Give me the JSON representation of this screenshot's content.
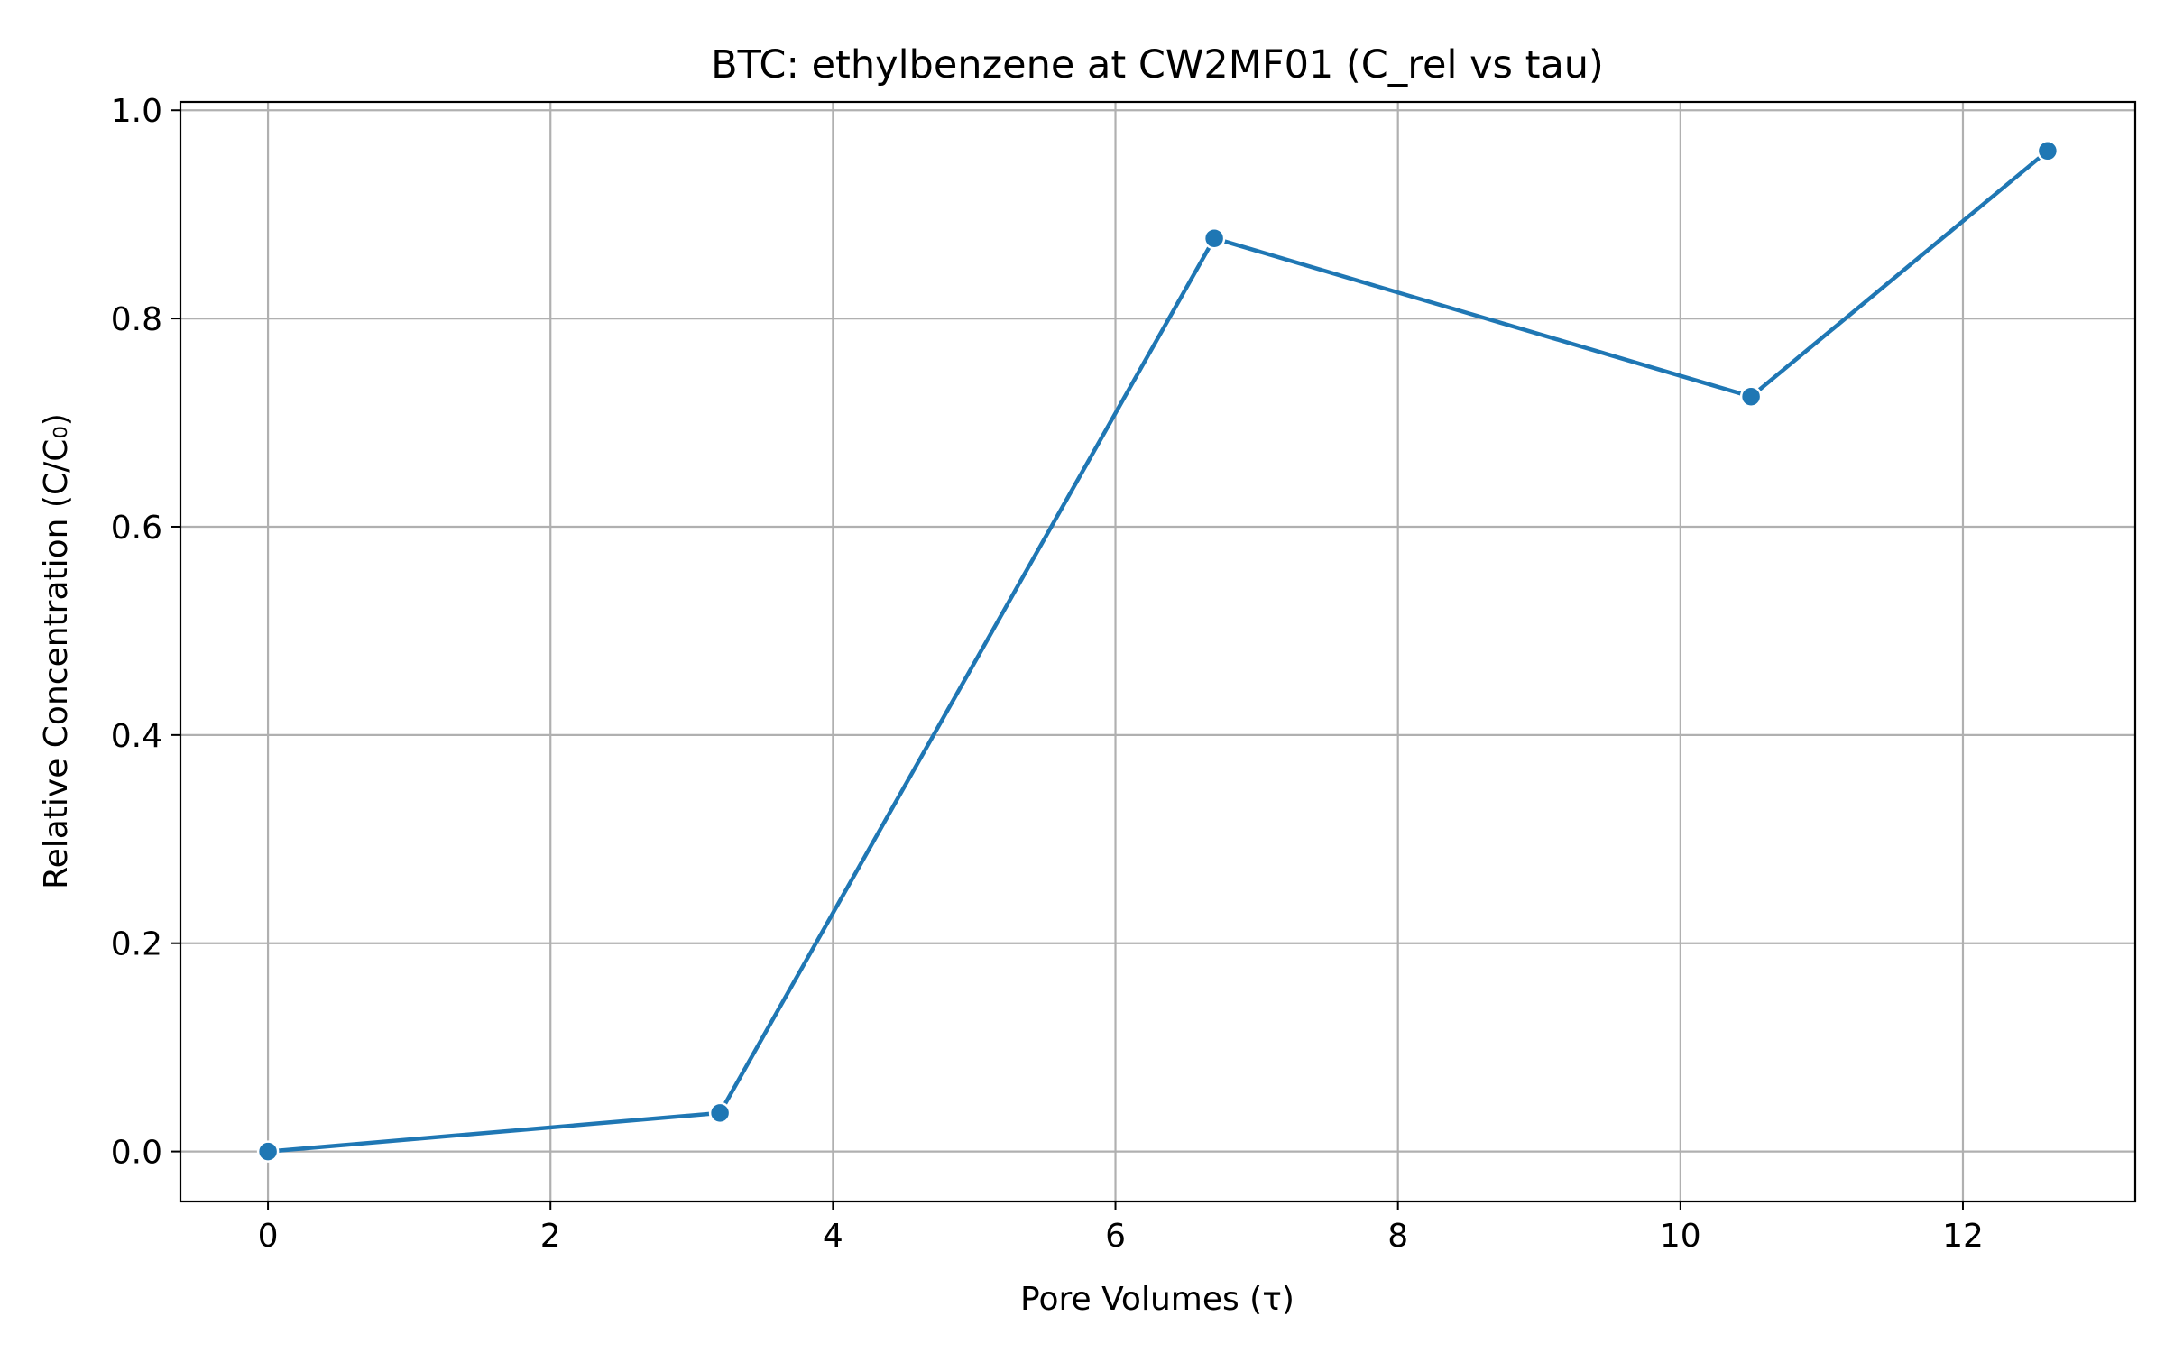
{
  "chart_data": {
    "type": "line",
    "title": "BTC: ethylbenzene at CW2MF01 (C_rel vs tau)",
    "xlabel": "Pore Volumes (τ)",
    "ylabel": "Relative Concentration (C/C₀)",
    "xlim": [
      -0.62,
      13.22
    ],
    "ylim": [
      -0.048,
      1.008
    ],
    "x_ticks": [
      0,
      2,
      4,
      6,
      8,
      10,
      12
    ],
    "x_tick_labels": [
      "0",
      "2",
      "4",
      "6",
      "8",
      "10",
      "12"
    ],
    "y_ticks": [
      0.0,
      0.2,
      0.4,
      0.6,
      0.8,
      1.0
    ],
    "y_tick_labels": [
      "0.0",
      "0.2",
      "0.4",
      "0.6",
      "0.8",
      "1.0"
    ],
    "grid": true,
    "series": [
      {
        "color": "#1f77b4",
        "marker": "circle",
        "x": [
          0.0,
          3.2,
          6.7,
          10.5,
          12.6
        ],
        "y": [
          0.0,
          0.037,
          0.877,
          0.725,
          0.961
        ]
      }
    ]
  }
}
